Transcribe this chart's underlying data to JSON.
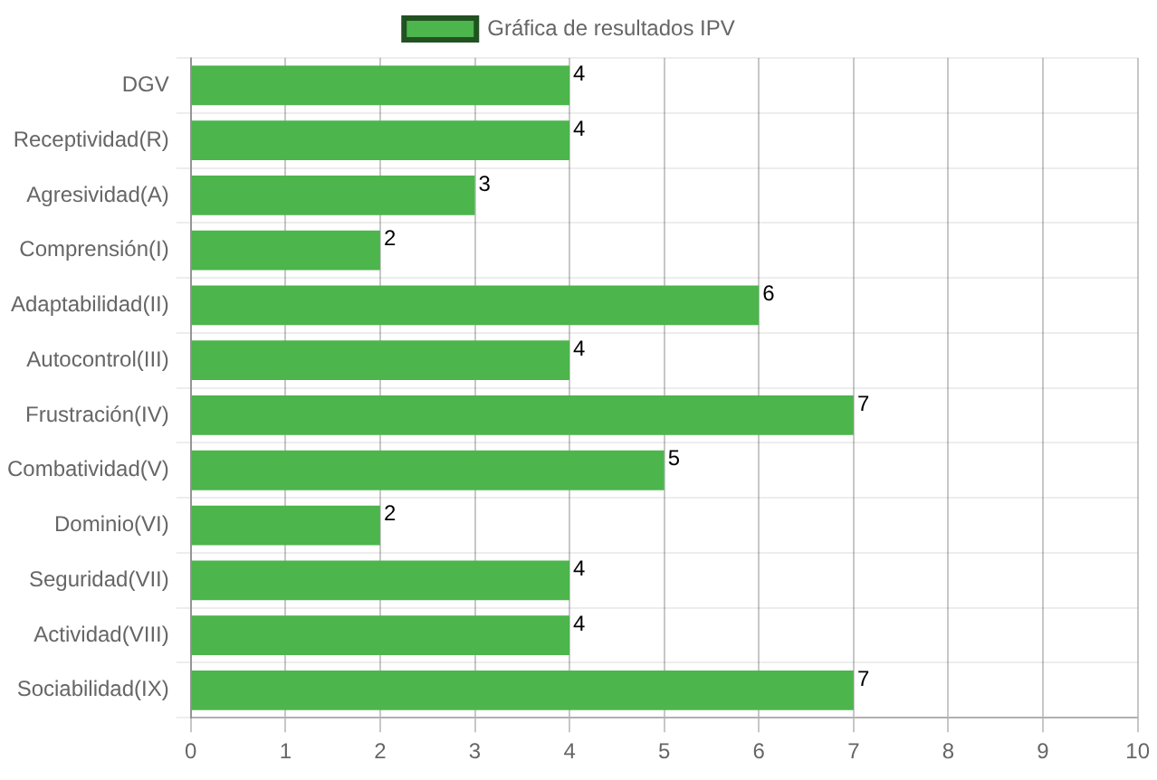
{
  "chart_data": {
    "type": "bar",
    "orientation": "horizontal",
    "categories": [
      "DGV",
      "Receptividad(R)",
      "Agresividad(A)",
      "Comprensión(I)",
      "Adaptabilidad(II)",
      "Autocontrol(III)",
      "Frustración(IV)",
      "Combatividad(V)",
      "Dominio(VI)",
      "Seguridad(VII)",
      "Actividad(VIII)",
      "Sociabilidad(IX)"
    ],
    "series": [
      {
        "name": "Gráfica de resultados IPV",
        "color": "#4cb54c",
        "values": [
          4,
          4,
          3,
          2,
          6,
          4,
          7,
          5,
          2,
          4,
          4,
          7
        ]
      }
    ],
    "xlim": [
      0,
      10
    ],
    "xticks": [
      0,
      1,
      2,
      3,
      4,
      5,
      6,
      7,
      8,
      9,
      10
    ],
    "grid": true,
    "legend": "top",
    "data_labels": true
  }
}
